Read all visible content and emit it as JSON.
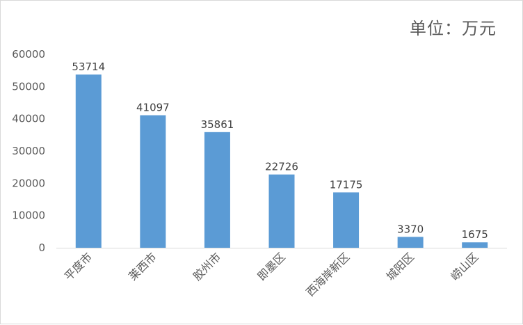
{
  "unit_label": "单位：万元",
  "colors": {
    "bar": "#5b9bd5",
    "axis": "#d9d9d9",
    "text": "#595959"
  },
  "chart_data": {
    "type": "bar",
    "title": "",
    "xlabel": "",
    "ylabel": "",
    "categories": [
      "平度市",
      "莱西市",
      "胶州市",
      "即墨区",
      "西海岸新区",
      "城阳区",
      "崂山区"
    ],
    "values": [
      53714,
      41097,
      35861,
      22726,
      17175,
      3370,
      1675
    ],
    "ylim": [
      0,
      60000
    ],
    "yticks": [
      0,
      10000,
      20000,
      30000,
      40000,
      50000,
      60000
    ],
    "grid": false,
    "data_labels": true
  }
}
